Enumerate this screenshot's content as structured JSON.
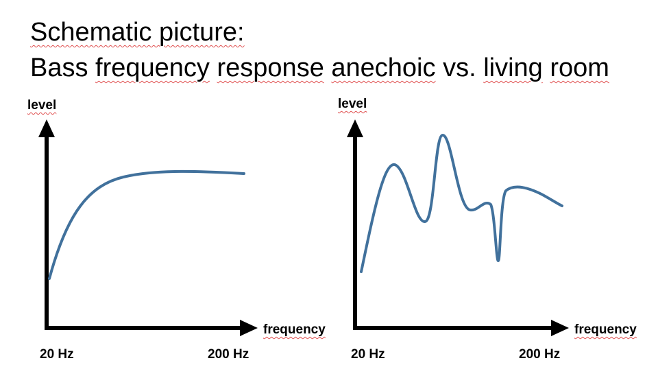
{
  "title": {
    "line1": "Schematic picture:",
    "line2_words": [
      "Bass",
      "frequency",
      "response",
      "anechoic",
      "vs.",
      "living",
      "room"
    ]
  },
  "left_diagram": {
    "y_label": "level",
    "x_label": "frequency",
    "tick_start": "20 Hz",
    "tick_end": "200 Hz",
    "curve_description": "anechoic"
  },
  "right_diagram": {
    "y_label": "level",
    "x_label": "frequency",
    "tick_start": "20 Hz",
    "tick_end": "200 Hz",
    "curve_description": "living room"
  },
  "colors": {
    "curve": "#41719c",
    "axis": "#000000",
    "spellcheck": "#e05050"
  }
}
